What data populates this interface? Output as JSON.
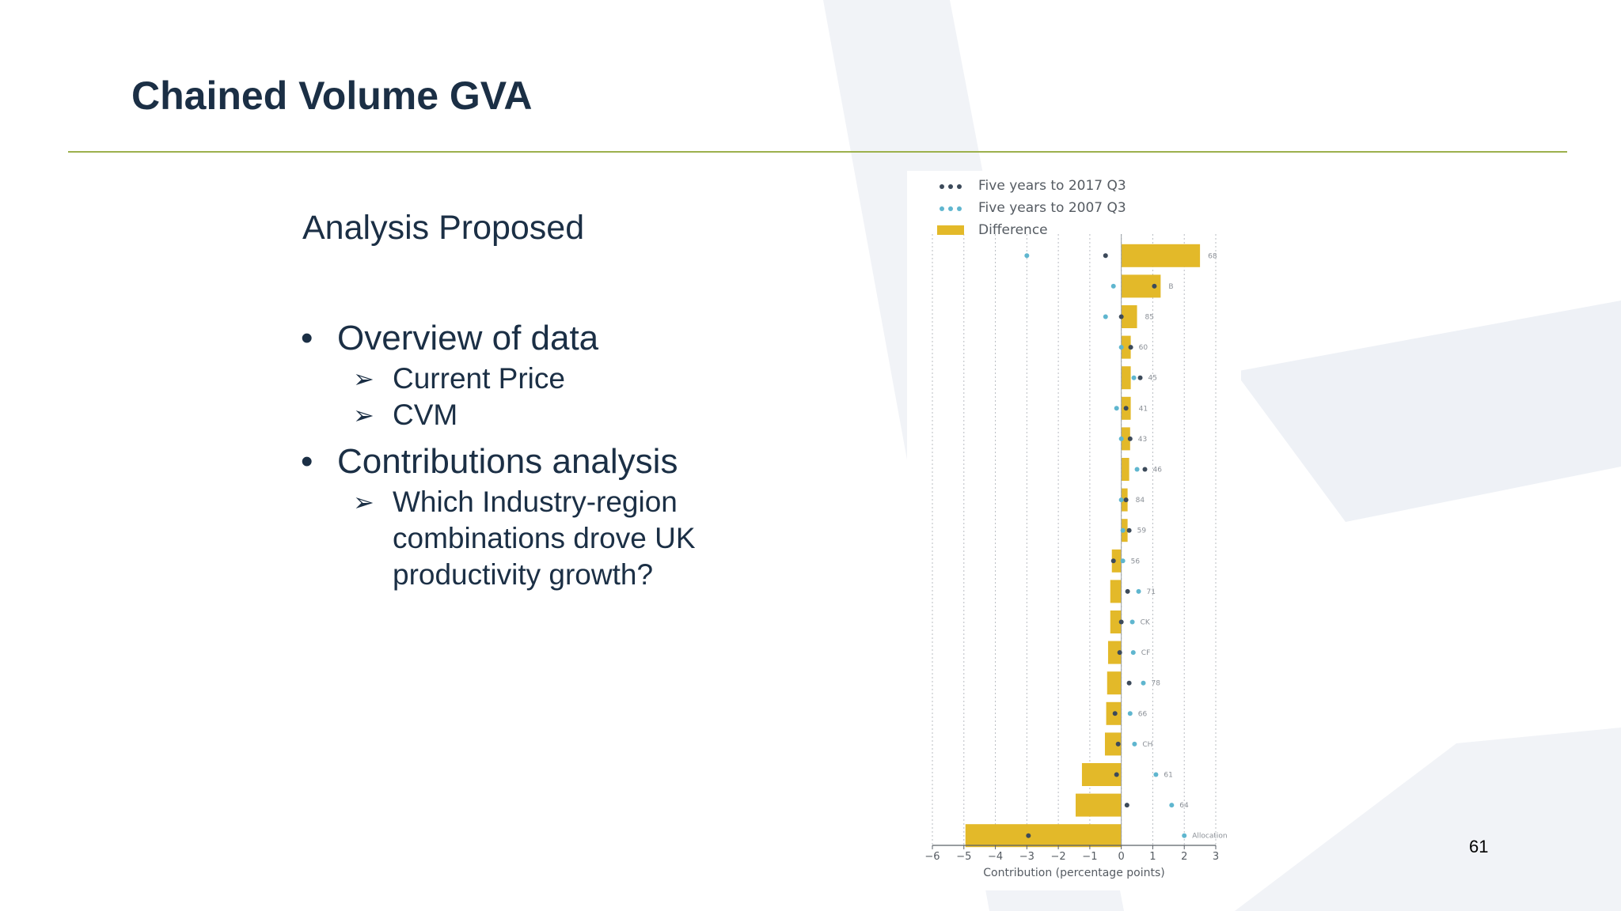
{
  "slide": {
    "title": "Chained Volume GVA",
    "subtitle": "Analysis Proposed",
    "bullets": [
      {
        "label": "Overview of data",
        "sub": [
          "Current Price",
          "CVM"
        ]
      },
      {
        "label": "Contributions analysis",
        "sub": [
          "Which Industry-region combinations drove UK productivity growth?"
        ]
      }
    ],
    "page_number": "61"
  },
  "colors": {
    "title": "#1b2f45",
    "rule": "#9cb04c",
    "bar": "#e3b929",
    "dot_2017": "#3c4a5a",
    "dot_2007": "#5fb6cf"
  },
  "chart_data": {
    "type": "bar",
    "orientation": "horizontal",
    "xlabel": "Contribution (percentage points)",
    "xlim": [
      -6,
      3
    ],
    "xticks": [
      "−6",
      "−5",
      "−4",
      "−3",
      "−2",
      "−1",
      "0",
      "1",
      "2",
      "3"
    ],
    "tick_values": [
      -6,
      -5,
      -4,
      -3,
      -2,
      -1,
      0,
      1,
      2,
      3
    ],
    "grid": true,
    "legend_position": "top-left",
    "legend": [
      "Five years to 2017 Q3",
      "Five years to 2007 Q3",
      "Difference"
    ],
    "categories": [
      "68",
      "B",
      "85",
      "60",
      "45",
      "41",
      "43",
      "46",
      "84",
      "59",
      "56",
      "71",
      "CK",
      "CF",
      "78",
      "66",
      "CH",
      "61",
      "64",
      "Allocation"
    ],
    "series": [
      {
        "name": "Five years to 2017 Q3",
        "kind": "dot",
        "values": [
          -0.5,
          1.05,
          0.0,
          0.3,
          0.6,
          0.15,
          0.28,
          0.75,
          0.15,
          0.25,
          -0.25,
          0.2,
          0.0,
          -0.05,
          0.25,
          -0.2,
          -0.1,
          -0.15,
          0.18,
          -2.95
        ]
      },
      {
        "name": "Five years to 2007 Q3",
        "kind": "dot",
        "values": [
          -3.0,
          -0.25,
          -0.5,
          0.0,
          0.4,
          -0.15,
          0.0,
          0.5,
          0.0,
          0.05,
          0.05,
          0.55,
          0.35,
          0.38,
          0.7,
          0.28,
          0.42,
          1.1,
          1.6,
          2.0
        ]
      },
      {
        "name": "Difference",
        "kind": "bar",
        "values": [
          2.5,
          1.25,
          0.5,
          0.3,
          0.3,
          0.3,
          0.28,
          0.25,
          0.2,
          0.2,
          -0.3,
          -0.35,
          -0.35,
          -0.42,
          -0.45,
          -0.48,
          -0.52,
          -1.25,
          -1.45,
          -4.95
        ]
      }
    ]
  }
}
